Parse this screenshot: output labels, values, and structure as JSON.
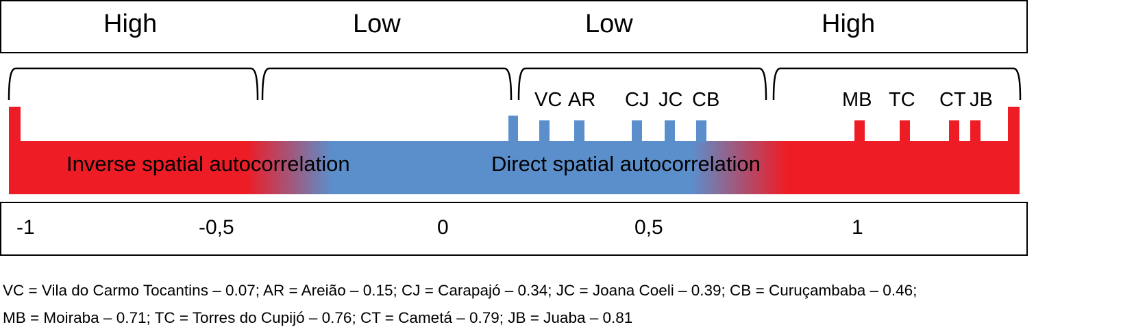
{
  "categories": [
    {
      "text": "High"
    },
    {
      "text": "Low"
    },
    {
      "text": "Low"
    },
    {
      "text": "High"
    }
  ],
  "bands": {
    "inverse": "Inverse spatial autocorrelation",
    "direct": "Direct spatial autocorrelation"
  },
  "colors": {
    "red": "#ee1c25",
    "blue": "#5b8fcc",
    "border": "#000000"
  },
  "axis": {
    "ticks": [
      {
        "value": -1,
        "label": "-1"
      },
      {
        "value": -0.5,
        "label": "-0,5"
      },
      {
        "value": 0,
        "label": "0"
      },
      {
        "value": 0.5,
        "label": "0,5"
      },
      {
        "value": 1,
        "label": "1"
      }
    ]
  },
  "localities": [
    {
      "code": "VC",
      "name": "Vila do Carmo Tocantins",
      "value": 0.07,
      "color": "blue"
    },
    {
      "code": "AR",
      "name": "Areião",
      "value": 0.15,
      "color": "blue"
    },
    {
      "code": "CJ",
      "name": "Carapajó",
      "value": 0.34,
      "color": "blue"
    },
    {
      "code": "JC",
      "name": "Joana Coeli",
      "value": 0.39,
      "color": "blue"
    },
    {
      "code": "CB",
      "name": "Curuçambaba",
      "value": 0.46,
      "color": "blue"
    },
    {
      "code": "MB",
      "name": "Moiraba",
      "value": 0.71,
      "color": "red"
    },
    {
      "code": "TC",
      "name": "Torres do Cupijó",
      "value": 0.76,
      "color": "red"
    },
    {
      "code": "CT",
      "name": "Cametá",
      "value": 0.79,
      "color": "red"
    },
    {
      "code": "JB",
      "name": "Juaba",
      "value": 0.81,
      "color": "red"
    }
  ],
  "legend": {
    "line1": "VC = Vila do Carmo Tocantins – 0.07; AR = Areião – 0.15; CJ = Carapajó – 0.34; JC = Joana Coeli – 0.39; CB = Curuçambaba – 0.46;",
    "line2": "MB = Moiraba – 0.71; TC = Torres do Cupijó – 0.76; CT = Cametá – 0.79; JB = Juaba – 0.81"
  }
}
